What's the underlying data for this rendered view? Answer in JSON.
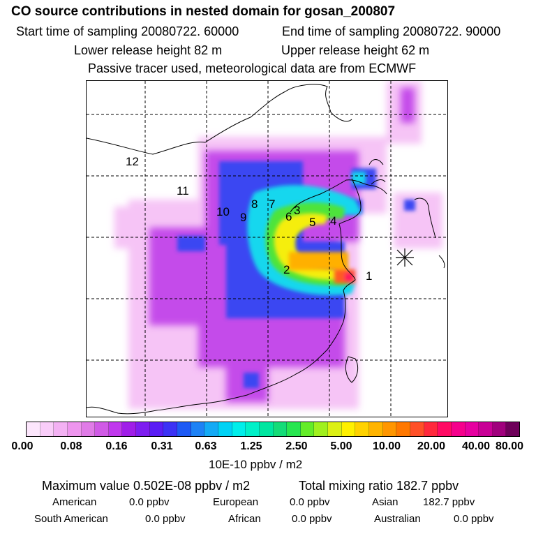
{
  "header": {
    "title": "CO  source contributions in nested domain for gosan_200807",
    "start_time": "Start time of sampling 20080722. 60000",
    "end_time": "End time of sampling 20080722. 90000",
    "lower_height": "Lower release height   82 m",
    "upper_height": "Upper release height   62 m",
    "tracer_note": "Passive tracer used, meteorological data are from ECMWF"
  },
  "map": {
    "region_labels": [
      "1",
      "2",
      "3",
      "4",
      "5",
      "6",
      "7",
      "8",
      "9",
      "10",
      "11",
      "12"
    ],
    "receptor_marker": "receptor-star"
  },
  "colorbar": {
    "colors": [
      "#fce6fc",
      "#f9cdf9",
      "#f3b1f3",
      "#ee95ee",
      "#e07be7",
      "#d05ae6",
      "#c038ed",
      "#a01ee8",
      "#7e1ef0",
      "#5a1ef5",
      "#3c32f5",
      "#1e5af5",
      "#1e82f5",
      "#14aaf5",
      "#00d2f5",
      "#00eeea",
      "#00f0c8",
      "#00e6a0",
      "#14dc78",
      "#28e650",
      "#64ec28",
      "#a0f01e",
      "#dcf014",
      "#fff000",
      "#ffd200",
      "#ffb400",
      "#ff9600",
      "#ff7800",
      "#ff5028",
      "#ff283c",
      "#ff0a64",
      "#f5008c",
      "#e600a0",
      "#c80096",
      "#a0007d",
      "#6e005a"
    ],
    "ticks": [
      "0.00",
      "0.08",
      "0.16",
      "0.31",
      "0.63",
      "1.25",
      "2.50",
      "5.00",
      "10.00",
      "20.00",
      "40.00",
      "80.00"
    ],
    "units": "10E-10 ppbv / m2"
  },
  "stats": {
    "max_value": "Maximum value  0.502E-08 ppbv / m2",
    "total_mixing": "Total mixing ratio      182.7 ppbv",
    "american_label": "American",
    "american_value": "0.0 ppbv",
    "european_label": "European",
    "european_value": "0.0 ppbv",
    "asian_label": "Asian",
    "asian_value": "182.7 ppbv",
    "south_american_label": "South American",
    "south_american_value": "0.0 ppbv",
    "african_label": "African",
    "african_value": "0.0 ppbv",
    "australian_label": "Australian",
    "australian_value": "0.0 ppbv"
  }
}
